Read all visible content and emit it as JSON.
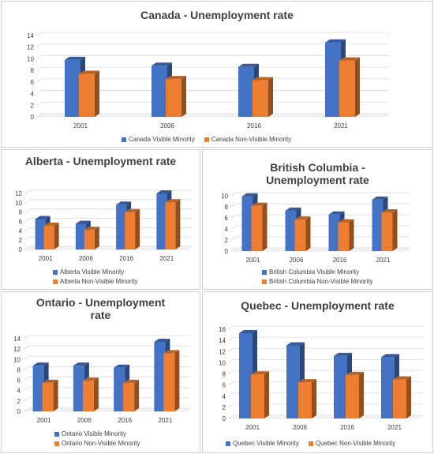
{
  "colors": {
    "visible_front": "#4472c4",
    "non_visible_front": "#ed7d31"
  },
  "chart_data": [
    {
      "type": "bar",
      "title": "Canada - Unemployment rate",
      "categories": [
        "2001",
        "2006",
        "2016",
        "2021"
      ],
      "yticks": [
        "0",
        "2",
        "4",
        "6",
        "8",
        "10",
        "12",
        "14"
      ],
      "ylim": [
        0,
        14
      ],
      "legend_position": "bottom",
      "series": [
        {
          "name": "Canada Visible Minority",
          "values": [
            9.8,
            8.8,
            8.6,
            12.8
          ]
        },
        {
          "name": "Canada Non-Visible Minority",
          "values": [
            7.4,
            6.5,
            6.3,
            9.7
          ]
        }
      ]
    },
    {
      "type": "bar",
      "title": "Alberta - Unemployment rate",
      "categories": [
        "2001",
        "2006",
        "2016",
        "2021"
      ],
      "yticks": [
        "0",
        "2",
        "4",
        "6",
        "8",
        "10",
        "12"
      ],
      "ylim": [
        0,
        12
      ],
      "legend_position": "bottom",
      "series": [
        {
          "name": "Alberta Visible Minority",
          "values": [
            6.5,
            5.5,
            9.6,
            12.0
          ]
        },
        {
          "name": "Alberta Non-Visible Minority",
          "values": [
            5.1,
            4.2,
            8.0,
            10.1
          ]
        }
      ]
    },
    {
      "type": "bar",
      "title": "British Columbia - Unemployment rate",
      "categories": [
        "2001",
        "2006",
        "2016",
        "2021"
      ],
      "yticks": [
        "0",
        "2",
        "4",
        "6",
        "8",
        "10"
      ],
      "ylim": [
        0,
        10
      ],
      "legend_position": "bottom",
      "series": [
        {
          "name": "British Columbia Visible Minority",
          "values": [
            9.9,
            7.3,
            6.6,
            9.3
          ]
        },
        {
          "name": "British Columbia Non-Visible Minority",
          "values": [
            8.2,
            5.7,
            5.2,
            7.0
          ]
        }
      ]
    },
    {
      "type": "bar",
      "title": "Ontario - Unemployment rate",
      "categories": [
        "2001",
        "2006",
        "2016",
        "2021"
      ],
      "yticks": [
        "0",
        "2",
        "4",
        "6",
        "8",
        "10",
        "12",
        "14"
      ],
      "ylim": [
        0,
        14
      ],
      "legend_position": "bottom",
      "series": [
        {
          "name": "Ontario Visible Minority",
          "values": [
            8.8,
            8.8,
            8.4,
            13.4
          ]
        },
        {
          "name": "Ontario Non-Visible Minority",
          "values": [
            5.5,
            5.9,
            5.5,
            11.2
          ]
        }
      ]
    },
    {
      "type": "bar",
      "title": "Quebec - Unemployment rate",
      "categories": [
        "2001",
        "2006",
        "2016",
        "2021"
      ],
      "yticks": [
        "0",
        "2",
        "4",
        "6",
        "8",
        "10",
        "12",
        "14",
        "16"
      ],
      "ylim": [
        0,
        16
      ],
      "legend_position": "bottom",
      "series": [
        {
          "name": "Quebec Visible Minority",
          "values": [
            15.3,
            13.1,
            11.2,
            11.0
          ]
        },
        {
          "name": "Quebec Non-Visible Minority",
          "values": [
            7.9,
            6.5,
            7.8,
            7.0
          ]
        }
      ]
    }
  ]
}
